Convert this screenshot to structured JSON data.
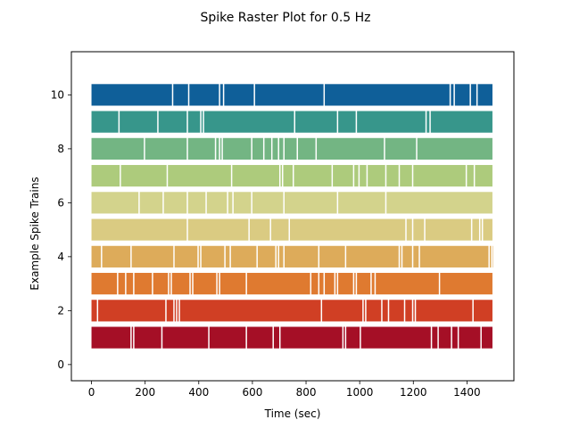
{
  "chart_data": {
    "type": "scatter",
    "title": "Spike Raster Plot for 0.5 Hz",
    "xlabel": "Time (sec)",
    "ylabel": "Example Spike Trains",
    "xlim": [
      -75,
      1575
    ],
    "ylim": [
      -0.6,
      11.6
    ],
    "xticks": [
      0,
      200,
      400,
      600,
      800,
      1000,
      1200,
      1400
    ],
    "yticks": [
      0,
      2,
      4,
      6,
      8,
      10
    ],
    "grid": false,
    "legend": "none",
    "trains": [
      {
        "row": 1,
        "color": "#a50f26",
        "spikes": [
          0,
          150,
          160,
          265,
          440,
          580,
          680,
          705,
          940,
          950,
          1005,
          1270,
          1295,
          1345,
          1370,
          1455
        ]
      },
      {
        "row": 2,
        "color": "#d03f24",
        "spikes": [
          0,
          25,
          280,
          310,
          320,
          330,
          860,
          1015,
          1025,
          1085,
          1110,
          1170,
          1200,
          1210,
          1425
        ]
      },
      {
        "row": 3,
        "color": "#df7a30",
        "spikes": [
          0,
          100,
          130,
          160,
          230,
          290,
          300,
          370,
          380,
          470,
          480,
          580,
          820,
          850,
          870,
          910,
          920,
          980,
          990,
          1045,
          1060,
          1300
        ]
      },
      {
        "row": 4,
        "color": "#ddab5a",
        "spikes": [
          0,
          40,
          150,
          310,
          400,
          410,
          500,
          520,
          620,
          690,
          700,
          720,
          850,
          950,
          1150,
          1160,
          1200,
          1225,
          1485,
          1495
        ]
      },
      {
        "row": 5,
        "color": "#dacb82",
        "spikes": [
          0,
          360,
          590,
          670,
          740,
          1175,
          1200,
          1245,
          1420,
          1450,
          1460
        ]
      },
      {
        "row": 6,
        "color": "#d3d38c",
        "spikes": [
          0,
          180,
          270,
          360,
          430,
          510,
          530,
          600,
          720,
          920,
          1100
        ]
      },
      {
        "row": 7,
        "color": "#adcb7c",
        "spikes": [
          0,
          110,
          285,
          525,
          705,
          715,
          755,
          900,
          980,
          1000,
          1030,
          1100,
          1150,
          1200,
          1400,
          1430
        ]
      },
      {
        "row": 8,
        "color": "#73b583",
        "spikes": [
          0,
          200,
          360,
          465,
          480,
          490,
          600,
          645,
          675,
          700,
          720,
          770,
          840,
          1095,
          1215
        ]
      },
      {
        "row": 9,
        "color": "#37968b",
        "spikes": [
          0,
          105,
          250,
          360,
          410,
          420,
          760,
          920,
          990,
          1250,
          1265
        ]
      },
      {
        "row": 10,
        "color": "#0f5f99",
        "spikes": [
          0,
          305,
          365,
          480,
          495,
          610,
          870,
          1340,
          1355,
          1415,
          1440
        ]
      }
    ]
  }
}
